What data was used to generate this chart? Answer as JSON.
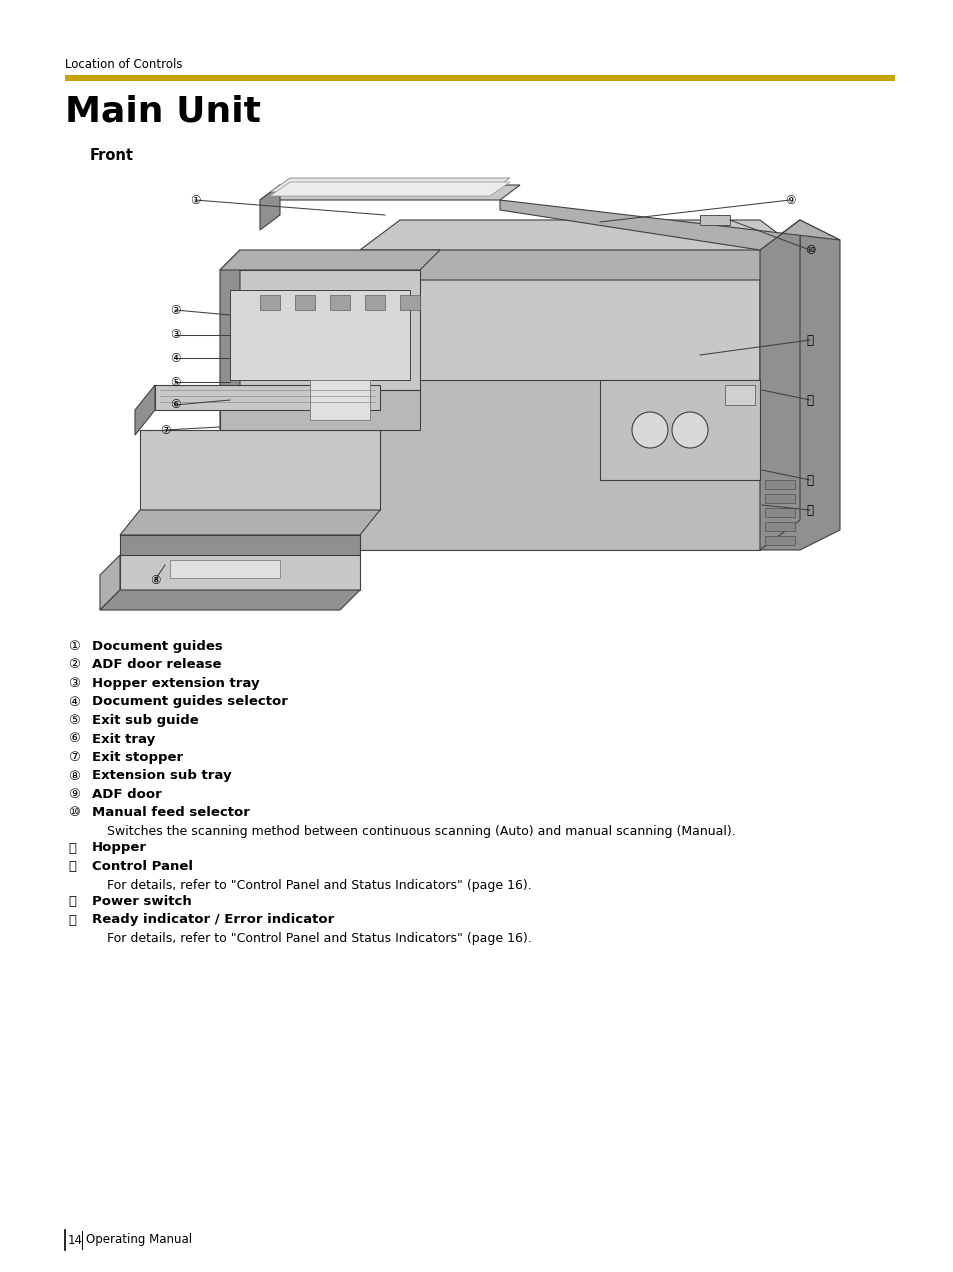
{
  "bg_color": "#ffffff",
  "header_text": "Location of Controls",
  "header_color": "#000000",
  "header_fontsize": 8.5,
  "gold_line_color": "#C8A400",
  "title": "Main Unit",
  "title_fontsize": 26,
  "subtitle": "Front",
  "subtitle_fontsize": 10.5,
  "items": [
    {
      "num": "①",
      "bold_text": "Document guides",
      "extra": ""
    },
    {
      "num": "②",
      "bold_text": "ADF door release",
      "extra": ""
    },
    {
      "num": "③",
      "bold_text": "Hopper extension tray",
      "extra": ""
    },
    {
      "num": "④",
      "bold_text": "Document guides selector",
      "extra": ""
    },
    {
      "num": "⑤",
      "bold_text": "Exit sub guide",
      "extra": ""
    },
    {
      "num": "⑥",
      "bold_text": "Exit tray",
      "extra": ""
    },
    {
      "num": "⑦",
      "bold_text": "Exit stopper",
      "extra": ""
    },
    {
      "num": "⑧",
      "bold_text": "Extension sub tray",
      "extra": ""
    },
    {
      "num": "⑨",
      "bold_text": "ADF door",
      "extra": ""
    },
    {
      "num": "⑩",
      "bold_text": "Manual feed selector",
      "extra": "Switches the scanning method between continuous scanning (Auto) and manual scanning (Manual)."
    },
    {
      "num": "⑪",
      "bold_text": "Hopper",
      "extra": ""
    },
    {
      "num": "⑫",
      "bold_text": "Control Panel",
      "extra": "For details, refer to \"Control Panel and Status Indicators\" (page 16)."
    },
    {
      "num": "⑬",
      "bold_text": "Power switch",
      "extra": ""
    },
    {
      "num": "⑭",
      "bold_text": "Ready indicator / Error indicator",
      "extra": "For details, refer to \"Control Panel and Status Indicators\" (page 16)."
    }
  ],
  "item_fontsize": 9.5,
  "extra_fontsize": 9.0,
  "page_number": "14",
  "footer_text": "Operating Manual",
  "footer_fontsize": 8.5
}
